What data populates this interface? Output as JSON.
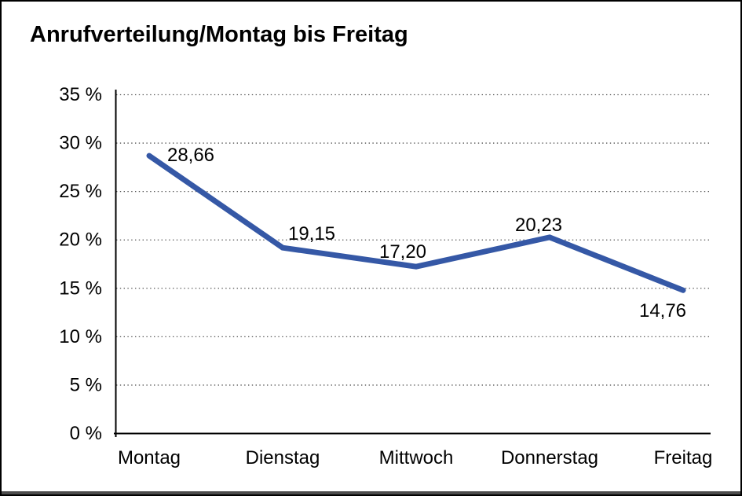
{
  "chart_data": {
    "type": "line",
    "title": "Anrufverteilung/Montag bis Freitag",
    "categories": [
      "Montag",
      "Dienstag",
      "Mittwoch",
      "Donnerstag",
      "Freitag"
    ],
    "values": [
      28.66,
      19.15,
      17.2,
      20.23,
      14.76
    ],
    "value_labels": [
      "28,66",
      "19,15",
      "17,20",
      "20,23",
      "14,76"
    ],
    "unit": "%",
    "xlabel": "",
    "ylabel": "",
    "ylim": [
      0,
      35
    ],
    "y_tick_step": 5,
    "y_tick_labels": [
      "0 %",
      "5 %",
      "10 %",
      "15 %",
      "20 %",
      "25 %",
      "30 %",
      "35 %"
    ],
    "grid": "horizontal dotted",
    "legend": "none",
    "colors": {
      "line": "#3558A6",
      "grid": "#555555",
      "axis": "#000000",
      "text": "#000000",
      "frame": "#000000",
      "frame_bottom": "#4d4d4d",
      "background": "#ffffff"
    }
  }
}
